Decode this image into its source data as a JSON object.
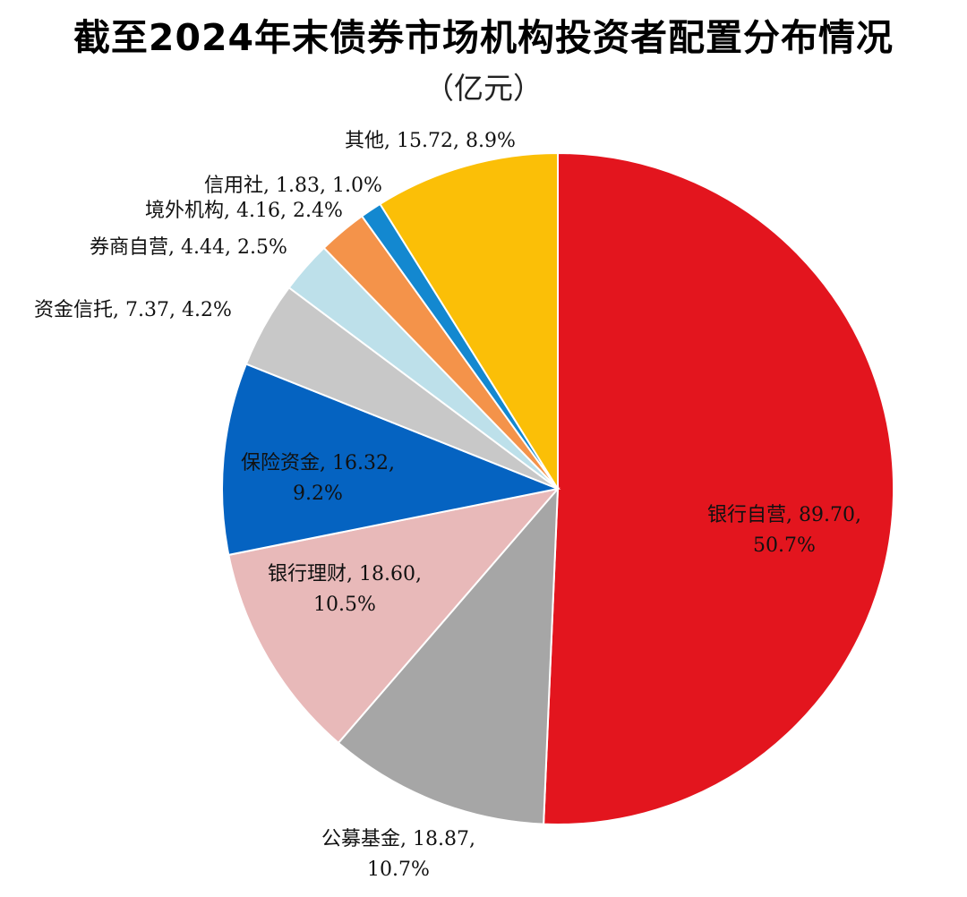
{
  "title": "截至2024年末债券市场机构投资者配置分布情况",
  "subtitle": "（亿元）",
  "chart_data": {
    "type": "pie",
    "title": "截至2024年末债券市场机构投资者配置分布情况",
    "subtitle": "（亿元）",
    "slices": [
      {
        "name": "银行自营",
        "value": 89.7,
        "value_label": "89.70",
        "percent_label": "50.7%",
        "color": "#e3151e"
      },
      {
        "name": "公募基金",
        "value": 18.87,
        "value_label": "18.87",
        "percent_label": "10.7%",
        "color": "#a6a6a6"
      },
      {
        "name": "银行理财",
        "value": 18.6,
        "value_label": "18.60",
        "percent_label": "10.5%",
        "color": "#e8b9b9"
      },
      {
        "name": "保险资金",
        "value": 16.32,
        "value_label": "16.32",
        "percent_label": "9.2%",
        "color": "#0563c1"
      },
      {
        "name": "资金信托",
        "value": 7.37,
        "value_label": "7.37",
        "percent_label": "4.2%",
        "color": "#c8c8c8"
      },
      {
        "name": "券商自营",
        "value": 4.44,
        "value_label": "4.44",
        "percent_label": "2.5%",
        "color": "#bde0ea"
      },
      {
        "name": "境外机构",
        "value": 4.16,
        "value_label": "4.16",
        "percent_label": "2.4%",
        "color": "#f4934a"
      },
      {
        "name": "信用社",
        "value": 1.83,
        "value_label": "1.83",
        "percent_label": "1.0%",
        "color": "#1388d0"
      },
      {
        "name": "其他",
        "value": 15.72,
        "value_label": "15.72",
        "percent_label": "8.9%",
        "color": "#fbbf07"
      }
    ],
    "start_angle": "12 o'clock",
    "direction": "clockwise",
    "legend": "none",
    "labels": "category, value, percent"
  }
}
